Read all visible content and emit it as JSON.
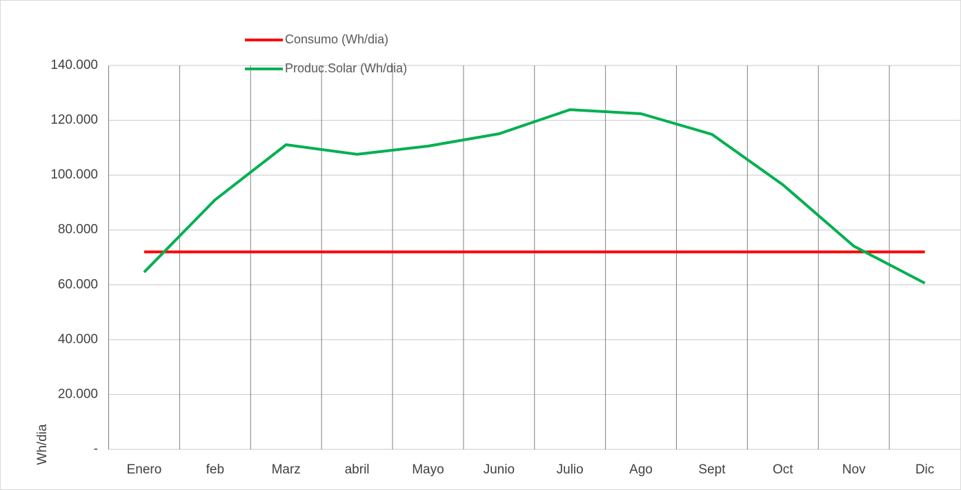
{
  "chart_data": {
    "type": "line",
    "y_axis_label": "Wh/dia",
    "categories": [
      "Enero",
      "feb",
      "Marz",
      "abril",
      "Mayo",
      "Junio",
      "Julio",
      "Ago",
      "Sept",
      "Oct",
      "Nov",
      "Dic"
    ],
    "series": [
      {
        "name": "Consumo (Wh/dia)",
        "color": "#ff0000",
        "values": [
          72000,
          72000,
          72000,
          72000,
          72000,
          72000,
          72000,
          72000,
          72000,
          72000,
          72000,
          72000
        ]
      },
      {
        "name": "Produc.Solar (Wh/dia)",
        "color": "#00b050",
        "values": [
          64600,
          91000,
          111100,
          107600,
          110600,
          115100,
          123900,
          122400,
          114900,
          96500,
          74100,
          60600
        ]
      }
    ],
    "ylim": [
      0,
      140000
    ],
    "yticks": [
      {
        "value": 0,
        "label": "-"
      },
      {
        "value": 20000,
        "label": "20.000"
      },
      {
        "value": 40000,
        "label": "40.000"
      },
      {
        "value": 60000,
        "label": "60.000"
      },
      {
        "value": 80000,
        "label": "80.000"
      },
      {
        "value": 100000,
        "label": "100.000"
      },
      {
        "value": 120000,
        "label": "120.000"
      },
      {
        "value": 140000,
        "label": "140.000"
      }
    ],
    "grid": true
  }
}
